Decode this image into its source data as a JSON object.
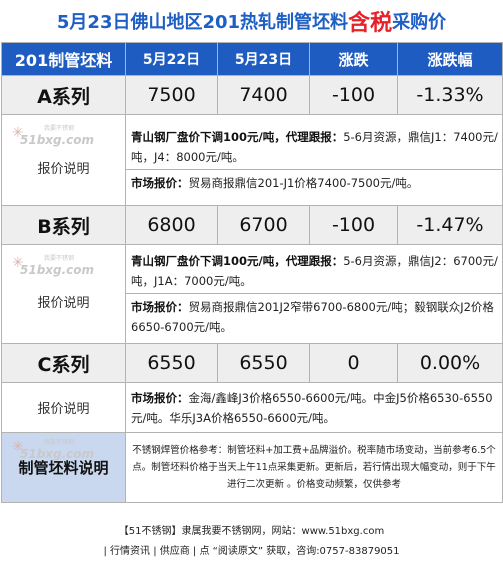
{
  "title": {
    "prefix": "5月23日佛山地区201热轧制管坯料",
    "highlight": "含税",
    "suffix": "采购价"
  },
  "colors": {
    "header_blue": "#1f5cc1",
    "title_blue": "#1f5fc4",
    "title_red": "#e8202a",
    "label_bg": "#c9d8ee"
  },
  "header": {
    "product": "201制管坯料",
    "date1": "5月22日",
    "date2": "5月23日",
    "change": "涨跌",
    "change_pct": "涨跌幅"
  },
  "watermark": {
    "small": "我要不锈钢",
    "url": "51bxg.com"
  },
  "rows": [
    {
      "name": "A系列",
      "prev": "7500",
      "curr": "7400",
      "change": "-100",
      "pct": "-1.33%",
      "desc_label": "报价说明",
      "desc1_bold": "青山钢厂盘价下调100元/吨，代理跟报：",
      "desc1_text": "5-6月资源，鼎信J1：7400元/吨，J4：8000元/吨。",
      "desc2_bold": "市场报价：",
      "desc2_text": "贸易商报鼎信201-J1价格7400-7500元/吨。"
    },
    {
      "name": "B系列",
      "prev": "6800",
      "curr": "6700",
      "change": "-100",
      "pct": "-1.47%",
      "desc_label": "报价说明",
      "desc1_bold": "青山钢厂盘价下调100元/吨，代理跟报：",
      "desc1_text": "5-6月资源，鼎信J2：6700元/吨，J1A：7000元/吨。",
      "desc2_bold": "市场报价：",
      "desc2_text": "贸易商报鼎信201J2窄带6700-6800元/吨；毅钢联众J2价格6650-6700元/吨。"
    },
    {
      "name": "C系列",
      "prev": "6550",
      "curr": "6550",
      "change": "0",
      "pct": "0.00%",
      "desc_label": "报价说明",
      "desc2_bold": "市场报价：",
      "desc2_text": "金海/鑫峰J3价格6550-6600元/吨。中金J5价格6530-6550元/吨。华乐J3A价格6550-6600元/吨。"
    }
  ],
  "notes": {
    "label": "制管坯料说明",
    "text": "不锈钢焊管价格参考：制管坯料+加工费+品牌溢价。税率随市场变动，当前参考6.5个点。制管坯料价格于当天上午11点采集更新。更新后，若行情出现大幅变动，则于下午进行二次更新 。价格变动频繁，仅供参考"
  },
  "footer": {
    "line1": "【51不锈钢】隶属我要不锈钢网，网站：www.51bxg.com",
    "line2": "| 行情资讯 | 供应商 | 点 “阅读原文” 获取，咨询:0757-83879051"
  }
}
